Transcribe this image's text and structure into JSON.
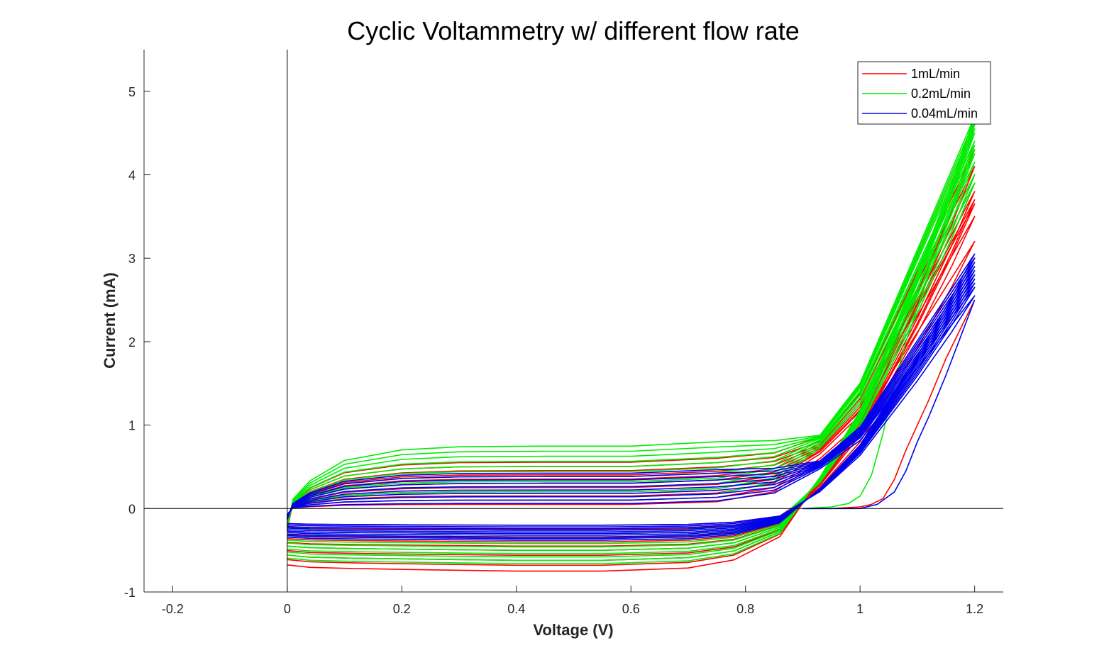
{
  "chart_data": {
    "type": "line",
    "title": "Cyclic Voltammetry w/ different flow rate",
    "xlabel": "Voltage (V)",
    "ylabel": "Current (mA)",
    "xlim": [
      -0.25,
      1.25
    ],
    "ylim": [
      -1,
      5.5
    ],
    "x_ticks": [
      -0.2,
      0,
      0.2,
      0.4,
      0.6,
      0.8,
      1,
      1.2
    ],
    "x_tick_labels": [
      "-0.2",
      "0",
      "0.2",
      "0.4",
      "0.6",
      "0.8",
      "1",
      "1.2"
    ],
    "y_ticks": [
      -1,
      0,
      1,
      2,
      3,
      4,
      5
    ],
    "y_tick_labels": [
      "-1",
      "0",
      "1",
      "2",
      "3",
      "4",
      "5"
    ],
    "grid": false,
    "legend_position": "top-right",
    "reference_lines": {
      "x": 0,
      "y": 0
    },
    "series": [
      {
        "name": "1mL/min",
        "color": "#ff0000",
        "first_sweep": {
          "x": [
            0.9,
            0.95,
            1.0,
            1.02,
            1.04,
            1.06,
            1.08,
            1.1,
            1.12,
            1.15,
            1.2
          ],
          "y": [
            0.0,
            0.0,
            0.02,
            0.05,
            0.12,
            0.35,
            0.7,
            1.0,
            1.3,
            1.8,
            2.5
          ]
        },
        "cycles": [
          {
            "anodic_plateau": 0.55,
            "cathodic_plateau": -0.75,
            "peak_current": 4.6
          },
          {
            "anodic_plateau": 0.5,
            "cathodic_plateau": -0.68,
            "peak_current": 4.3
          },
          {
            "anodic_plateau": 0.45,
            "cathodic_plateau": -0.62,
            "peak_current": 4.1
          },
          {
            "anodic_plateau": 0.4,
            "cathodic_plateau": -0.56,
            "peak_current": 4.0
          },
          {
            "anodic_plateau": 0.35,
            "cathodic_plateau": -0.5,
            "peak_current": 3.9
          },
          {
            "anodic_plateau": 0.3,
            "cathodic_plateau": -0.45,
            "peak_current": 3.8
          },
          {
            "anodic_plateau": 0.25,
            "cathodic_plateau": -0.4,
            "peak_current": 3.7
          },
          {
            "anodic_plateau": 0.2,
            "cathodic_plateau": -0.35,
            "peak_current": 3.65
          },
          {
            "anodic_plateau": 0.15,
            "cathodic_plateau": -0.3,
            "peak_current": 3.5
          },
          {
            "anodic_plateau": 0.1,
            "cathodic_plateau": -0.25,
            "peak_current": 3.2
          },
          {
            "anodic_plateau": 0.05,
            "cathodic_plateau": -0.2,
            "peak_current": 3.0
          }
        ]
      },
      {
        "name": "0.2mL/min",
        "color": "#00ee00",
        "first_sweep": {
          "x": [
            0.9,
            0.95,
            0.98,
            1.0,
            1.02,
            1.04,
            1.06,
            1.08,
            1.1,
            1.15,
            1.2
          ],
          "y": [
            0.0,
            0.02,
            0.06,
            0.15,
            0.4,
            0.9,
            1.5,
            2.0,
            2.4,
            3.4,
            4.3
          ]
        },
        "cycles": [
          {
            "anodic_plateau": 0.74,
            "cathodic_plateau": -0.66,
            "peak_current": 4.7
          },
          {
            "anodic_plateau": 0.68,
            "cathodic_plateau": -0.62,
            "peak_current": 4.65
          },
          {
            "anodic_plateau": 0.62,
            "cathodic_plateau": -0.58,
            "peak_current": 4.6
          },
          {
            "anodic_plateau": 0.56,
            "cathodic_plateau": -0.54,
            "peak_current": 4.55
          },
          {
            "anodic_plateau": 0.5,
            "cathodic_plateau": -0.5,
            "peak_current": 4.5
          },
          {
            "anodic_plateau": 0.44,
            "cathodic_plateau": -0.46,
            "peak_current": 4.4
          },
          {
            "anodic_plateau": 0.38,
            "cathodic_plateau": -0.42,
            "peak_current": 4.35
          },
          {
            "anodic_plateau": 0.32,
            "cathodic_plateau": -0.38,
            "peak_current": 4.25
          },
          {
            "anodic_plateau": 0.26,
            "cathodic_plateau": -0.34,
            "peak_current": 4.15
          },
          {
            "anodic_plateau": 0.2,
            "cathodic_plateau": -0.3,
            "peak_current": 4.0
          },
          {
            "anodic_plateau": 0.14,
            "cathodic_plateau": -0.26,
            "peak_current": 3.9
          }
        ]
      },
      {
        "name": "0.04mL/min",
        "color": "#0000ee",
        "first_sweep": {
          "x": [
            0.9,
            0.95,
            1.0,
            1.03,
            1.06,
            1.08,
            1.1,
            1.12,
            1.15,
            1.2
          ],
          "y": [
            0.0,
            0.0,
            0.0,
            0.05,
            0.2,
            0.45,
            0.8,
            1.1,
            1.6,
            2.5
          ]
        },
        "cycles": [
          {
            "anodic_plateau": 0.42,
            "cathodic_plateau": -0.38,
            "peak_current": 3.05
          },
          {
            "anodic_plateau": 0.38,
            "cathodic_plateau": -0.36,
            "peak_current": 3.0
          },
          {
            "anodic_plateau": 0.34,
            "cathodic_plateau": -0.34,
            "peak_current": 2.95
          },
          {
            "anodic_plateau": 0.3,
            "cathodic_plateau": -0.32,
            "peak_current": 2.9
          },
          {
            "anodic_plateau": 0.26,
            "cathodic_plateau": -0.3,
            "peak_current": 2.85
          },
          {
            "anodic_plateau": 0.22,
            "cathodic_plateau": -0.28,
            "peak_current": 2.8
          },
          {
            "anodic_plateau": 0.18,
            "cathodic_plateau": -0.26,
            "peak_current": 2.75
          },
          {
            "anodic_plateau": 0.14,
            "cathodic_plateau": -0.24,
            "peak_current": 2.7
          },
          {
            "anodic_plateau": 0.1,
            "cathodic_plateau": -0.22,
            "peak_current": 2.65
          },
          {
            "anodic_plateau": 0.06,
            "cathodic_plateau": -0.2,
            "peak_current": 2.55
          }
        ]
      }
    ]
  }
}
